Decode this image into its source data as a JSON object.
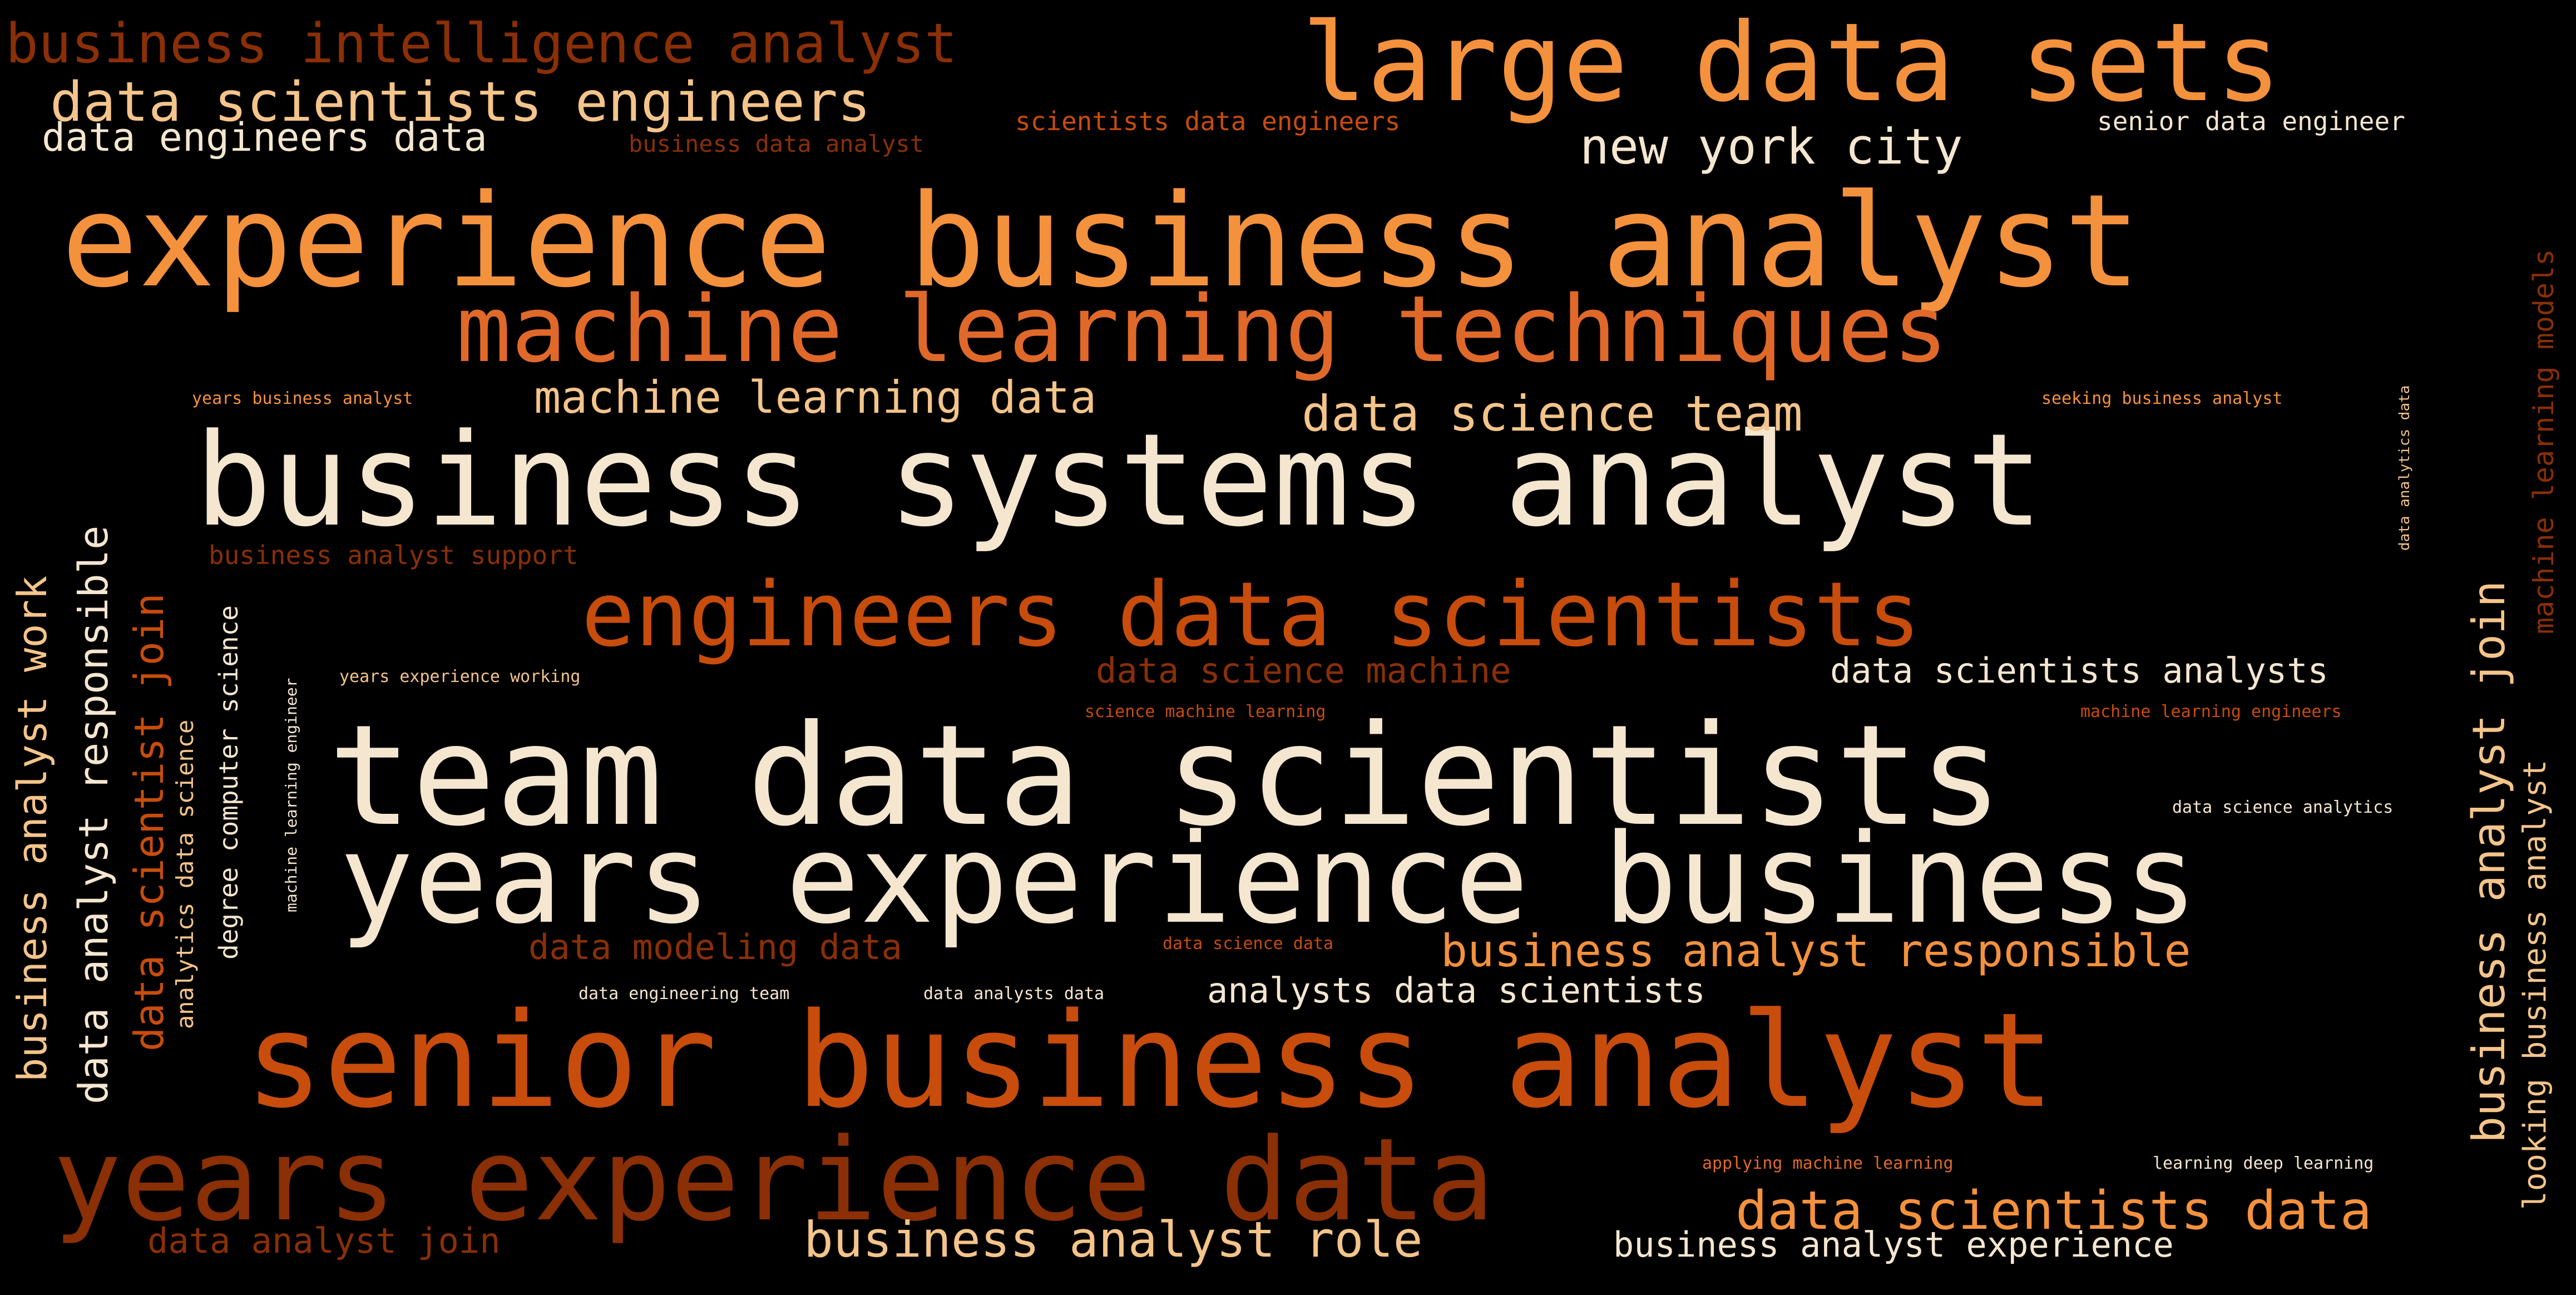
{
  "wordcloud": {
    "background": "#000000",
    "palette": [
      "#f5e6d0",
      "#f4913d",
      "#e0692a",
      "#c84c0c",
      "#8a2f06"
    ],
    "phrases": [
      {
        "text": "team data scientists",
        "color": "#f5e6d0"
      },
      {
        "text": "years experience business",
        "color": "#f5e6d0"
      },
      {
        "text": "business systems analyst",
        "color": "#f5e6d0"
      },
      {
        "text": "experience business analyst",
        "color": "#f4913d"
      },
      {
        "text": "senior business analyst",
        "color": "#c84c0c"
      },
      {
        "text": "large data sets",
        "color": "#f4913d"
      },
      {
        "text": "machine learning techniques",
        "color": "#e0692a"
      },
      {
        "text": "years experience data",
        "color": "#8a2f06"
      },
      {
        "text": "engineers data scientists",
        "color": "#c84c0c"
      },
      {
        "text": "business intelligence analyst",
        "color": "#8a2f06"
      },
      {
        "text": "data scientists engineers",
        "color": "#f4c48a"
      },
      {
        "text": "data engineers data",
        "color": "#f5e6d0"
      },
      {
        "text": "business data analyst",
        "color": "#8a2f06"
      },
      {
        "text": "scientists data engineers",
        "color": "#c84c0c"
      },
      {
        "text": "new york city",
        "color": "#f5e6d0"
      },
      {
        "text": "senior data engineer",
        "color": "#f5e6d0"
      },
      {
        "text": "machine learning data",
        "color": "#f4c48a"
      },
      {
        "text": "data science team",
        "color": "#f4c48a"
      },
      {
        "text": "years business analyst",
        "color": "#f4913d"
      },
      {
        "text": "seeking business analyst",
        "color": "#f4913d"
      },
      {
        "text": "business analyst support",
        "color": "#8a2f06"
      },
      {
        "text": "data science machine",
        "color": "#8a2f06"
      },
      {
        "text": "data scientists analysts",
        "color": "#f5e6d0"
      },
      {
        "text": "years experience working",
        "color": "#f4c48a"
      },
      {
        "text": "science machine learning",
        "color": "#c84c0c"
      },
      {
        "text": "machine learning engineers",
        "color": "#c84c0c"
      },
      {
        "text": "data science analytics",
        "color": "#f5e6d0"
      },
      {
        "text": "data modeling data",
        "color": "#8a2f06"
      },
      {
        "text": "data science data",
        "color": "#c84c0c"
      },
      {
        "text": "business analyst responsible",
        "color": "#f4913d"
      },
      {
        "text": "data engineering team",
        "color": "#f5e6d0"
      },
      {
        "text": "data analysts data",
        "color": "#f5e6d0"
      },
      {
        "text": "analysts data scientists",
        "color": "#f5e6d0"
      },
      {
        "text": "applying machine learning",
        "color": "#e0692a"
      },
      {
        "text": "learning deep learning",
        "color": "#f5e6d0"
      },
      {
        "text": "data scientists data",
        "color": "#f4913d"
      },
      {
        "text": "data analyst join",
        "color": "#8a2f06"
      },
      {
        "text": "business analyst role",
        "color": "#f4c48a"
      },
      {
        "text": "business analyst experience",
        "color": "#f5e6d0"
      },
      {
        "text": "business analyst work",
        "color": "#f4c48a"
      },
      {
        "text": "data analyst responsible",
        "color": "#f5e6d0"
      },
      {
        "text": "data scientist join",
        "color": "#c84c0c"
      },
      {
        "text": "analytics data science",
        "color": "#f4c48a"
      },
      {
        "text": "degree computer science",
        "color": "#f5e6d0"
      },
      {
        "text": "machine learning engineer",
        "color": "#f5e6d0"
      },
      {
        "text": "business analyst join",
        "color": "#f4c48a"
      },
      {
        "text": "looking business analyst",
        "color": "#f4c48a"
      },
      {
        "text": "machine learning models",
        "color": "#8a2f06"
      },
      {
        "text": "data analytics data",
        "color": "#f4c48a"
      }
    ]
  }
}
